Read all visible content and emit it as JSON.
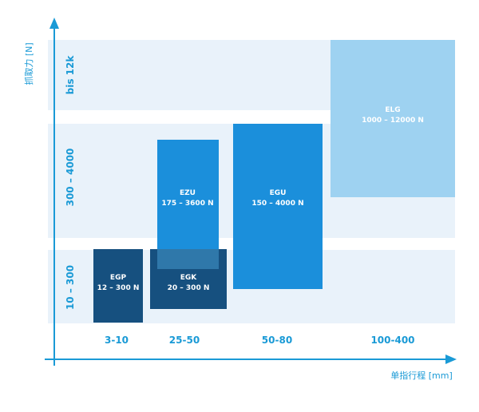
{
  "axes": {
    "y_label": "抓取力 [N]",
    "x_label": "单指行程 [mm]",
    "accent": "#1a9ad6"
  },
  "bands": [
    {
      "label": "10 – 300"
    },
    {
      "label": "300 – 4000"
    },
    {
      "label": "bis 12k"
    }
  ],
  "columns": [
    {
      "label": "3-10"
    },
    {
      "label": "25-50"
    },
    {
      "label": "50-80"
    },
    {
      "label": "100-400"
    }
  ],
  "products": [
    {
      "name": "EGP",
      "range": "12 – 300 N",
      "color": "#16507f"
    },
    {
      "name": "EGK",
      "range": "20 – 300 N",
      "color": "#16507f"
    },
    {
      "name": "EZU",
      "range": "175 – 3600 N",
      "color": "#1b8fdb"
    },
    {
      "name": "EGU",
      "range": "150 – 4000 N",
      "color": "#1b8fdb"
    },
    {
      "name": "ELG",
      "range": "1000 – 12000 N",
      "color": "#9ed2f1"
    }
  ],
  "colors": {
    "band_fill": "#e9f2fa",
    "overlap": "#2f78aa",
    "dark_text": "#ffffff",
    "axis_text": "#1a9ad6"
  }
}
